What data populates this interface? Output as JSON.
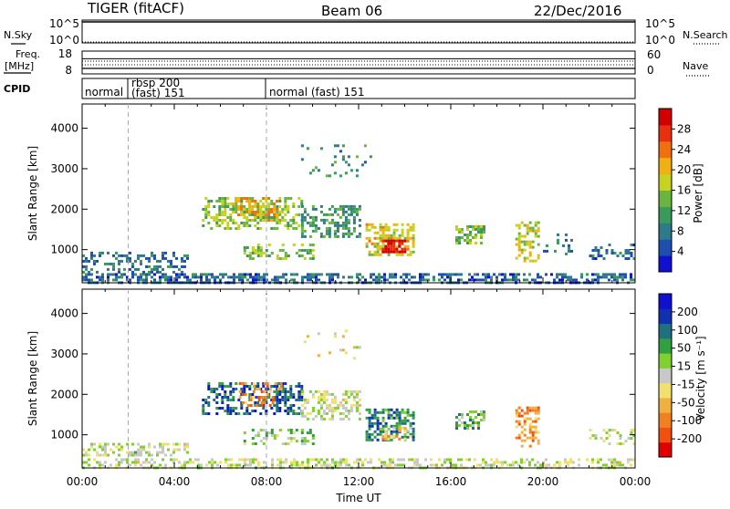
{
  "header": {
    "radar": "TIGER (fitACF)",
    "beam": "Beam 06",
    "date": "22/Dec/2016"
  },
  "left_labels": {
    "nsky": "N.Sky",
    "freq_line1": "Freq.",
    "freq_line2": "[MHz]",
    "cpid": "CPID"
  },
  "right_labels": {
    "nsearch": "N.Search",
    "nave": "Nave"
  },
  "noise_panel": {
    "left_ticks": [
      "10^5",
      "10^0"
    ],
    "right_ticks": [
      "10^5",
      "10^0"
    ]
  },
  "freq_panel": {
    "left_ticks": [
      "18",
      "8"
    ],
    "right_ticks": [
      "60",
      "0"
    ],
    "frequency_mhz": 12,
    "nave": 40
  },
  "cpid_panel": {
    "segments": [
      {
        "label": "normal",
        "start_h": 0
      },
      {
        "label": "rbsp 200",
        "label2": "(fast) 151",
        "start_h": 2
      },
      {
        "label": "normal (fast) 151",
        "start_h": 8
      }
    ]
  },
  "chart_data": [
    {
      "type": "heatmap",
      "title": "Power",
      "xlabel": "",
      "ylabel": "Slant Range [km]",
      "xlim": [
        0,
        24
      ],
      "ylim": [
        180,
        4600
      ],
      "yticks": [
        "1000",
        "2000",
        "3000",
        "4000"
      ],
      "colorbar_label": "Power [dB]",
      "colorbar_ticks": [
        "28",
        "24",
        "20",
        "16",
        "12",
        "8",
        "4"
      ],
      "colorbar_range": [
        0,
        30
      ],
      "colorscale": [
        "#1010d0",
        "#1e4fb0",
        "#2f7a8a",
        "#3a9a5a",
        "#6ab540",
        "#c8d020",
        "#f0b010",
        "#f07010",
        "#e83010",
        "#d00000"
      ],
      "scatter_regions": [
        {
          "t0": 0,
          "t1": 24,
          "r0": 200,
          "r1": 420,
          "val": 6,
          "density": 0.55
        },
        {
          "t0": 0,
          "t1": 4.6,
          "r0": 420,
          "r1": 950,
          "val": 7,
          "density": 0.35
        },
        {
          "t0": 5.2,
          "t1": 9.5,
          "r0": 1500,
          "r1": 2300,
          "val": 14,
          "density": 0.45
        },
        {
          "t0": 6.5,
          "t1": 8.5,
          "r0": 1700,
          "r1": 2300,
          "val": 20,
          "density": 0.35
        },
        {
          "t0": 7.0,
          "t1": 10.0,
          "r0": 750,
          "r1": 1150,
          "val": 14,
          "density": 0.35
        },
        {
          "t0": 9.5,
          "t1": 12.0,
          "r0": 1300,
          "r1": 2100,
          "val": 10,
          "density": 0.4
        },
        {
          "t0": 12.3,
          "t1": 14.4,
          "r0": 850,
          "r1": 1650,
          "val": 18,
          "density": 0.55
        },
        {
          "t0": 13.0,
          "t1": 14.0,
          "r0": 950,
          "r1": 1250,
          "val": 28,
          "density": 0.9
        },
        {
          "t0": 16.2,
          "t1": 17.5,
          "r0": 1150,
          "r1": 1600,
          "val": 14,
          "density": 0.5
        },
        {
          "t0": 18.8,
          "t1": 19.8,
          "r0": 700,
          "r1": 1700,
          "val": 16,
          "density": 0.45
        },
        {
          "t0": 20.0,
          "t1": 21.2,
          "r0": 900,
          "r1": 1400,
          "val": 8,
          "density": 0.25
        },
        {
          "t0": 22.0,
          "t1": 24.0,
          "r0": 800,
          "r1": 1150,
          "val": 6,
          "density": 0.3
        },
        {
          "t0": 9.5,
          "t1": 12.5,
          "r0": 2800,
          "r1": 3600,
          "val": 9,
          "density": 0.08
        }
      ]
    },
    {
      "type": "heatmap",
      "title": "Velocity",
      "xlabel": "Time UT",
      "ylabel": "Slant Range [km]",
      "xlim": [
        0,
        24
      ],
      "ylim": [
        180,
        4600
      ],
      "xticks": [
        "00:00",
        "04:00",
        "08:00",
        "12:00",
        "16:00",
        "20:00",
        "00:00"
      ],
      "yticks": [
        "1000",
        "2000",
        "3000",
        "4000"
      ],
      "colorbar_label": "Velocity [m s⁻¹]",
      "colorbar_ticks": [
        "200",
        "100",
        "50",
        "15",
        "-15",
        "-50",
        "-100",
        "-200"
      ],
      "colorbar_range": [
        -250,
        250
      ],
      "colorscale": [
        "#e00000",
        "#f05010",
        "#f08020",
        "#f0b040",
        "#f0e070",
        "#c8c8c8",
        "#80d030",
        "#30a040",
        "#207080",
        "#1030b0",
        "#1010d0"
      ],
      "scatter_regions": [
        {
          "t0": 0,
          "t1": 24,
          "r0": 200,
          "r1": 420,
          "val": 0,
          "density": 0.45
        },
        {
          "t0": 0,
          "t1": 4.6,
          "r0": 500,
          "r1": 800,
          "val": 0,
          "density": 0.45
        },
        {
          "t0": 5.2,
          "t1": 9.5,
          "r0": 1500,
          "r1": 2300,
          "val": 150,
          "density": 0.45
        },
        {
          "t0": 6.8,
          "t1": 8.6,
          "r0": 1700,
          "r1": 2300,
          "val": -120,
          "density": 0.3
        },
        {
          "t0": 7.0,
          "t1": 10.0,
          "r0": 750,
          "r1": 1150,
          "val": 40,
          "density": 0.35
        },
        {
          "t0": 9.5,
          "t1": 12.0,
          "r0": 1400,
          "r1": 2100,
          "val": 0,
          "density": 0.45
        },
        {
          "t0": 12.3,
          "t1": 14.4,
          "r0": 850,
          "r1": 1650,
          "val": 120,
          "density": 0.55
        },
        {
          "t0": 13.0,
          "t1": 14.2,
          "r0": 900,
          "r1": 1200,
          "val": -60,
          "density": 0.4
        },
        {
          "t0": 16.2,
          "t1": 17.5,
          "r0": 1150,
          "r1": 1600,
          "val": 80,
          "density": 0.5
        },
        {
          "t0": 18.8,
          "t1": 19.8,
          "r0": 700,
          "r1": 1700,
          "val": -120,
          "density": 0.45
        },
        {
          "t0": 22.0,
          "t1": 24.0,
          "r0": 800,
          "r1": 1150,
          "val": 0,
          "density": 0.3
        },
        {
          "t0": 9.5,
          "t1": 12.5,
          "r0": 2800,
          "r1": 3600,
          "val": -40,
          "density": 0.08
        }
      ]
    }
  ]
}
